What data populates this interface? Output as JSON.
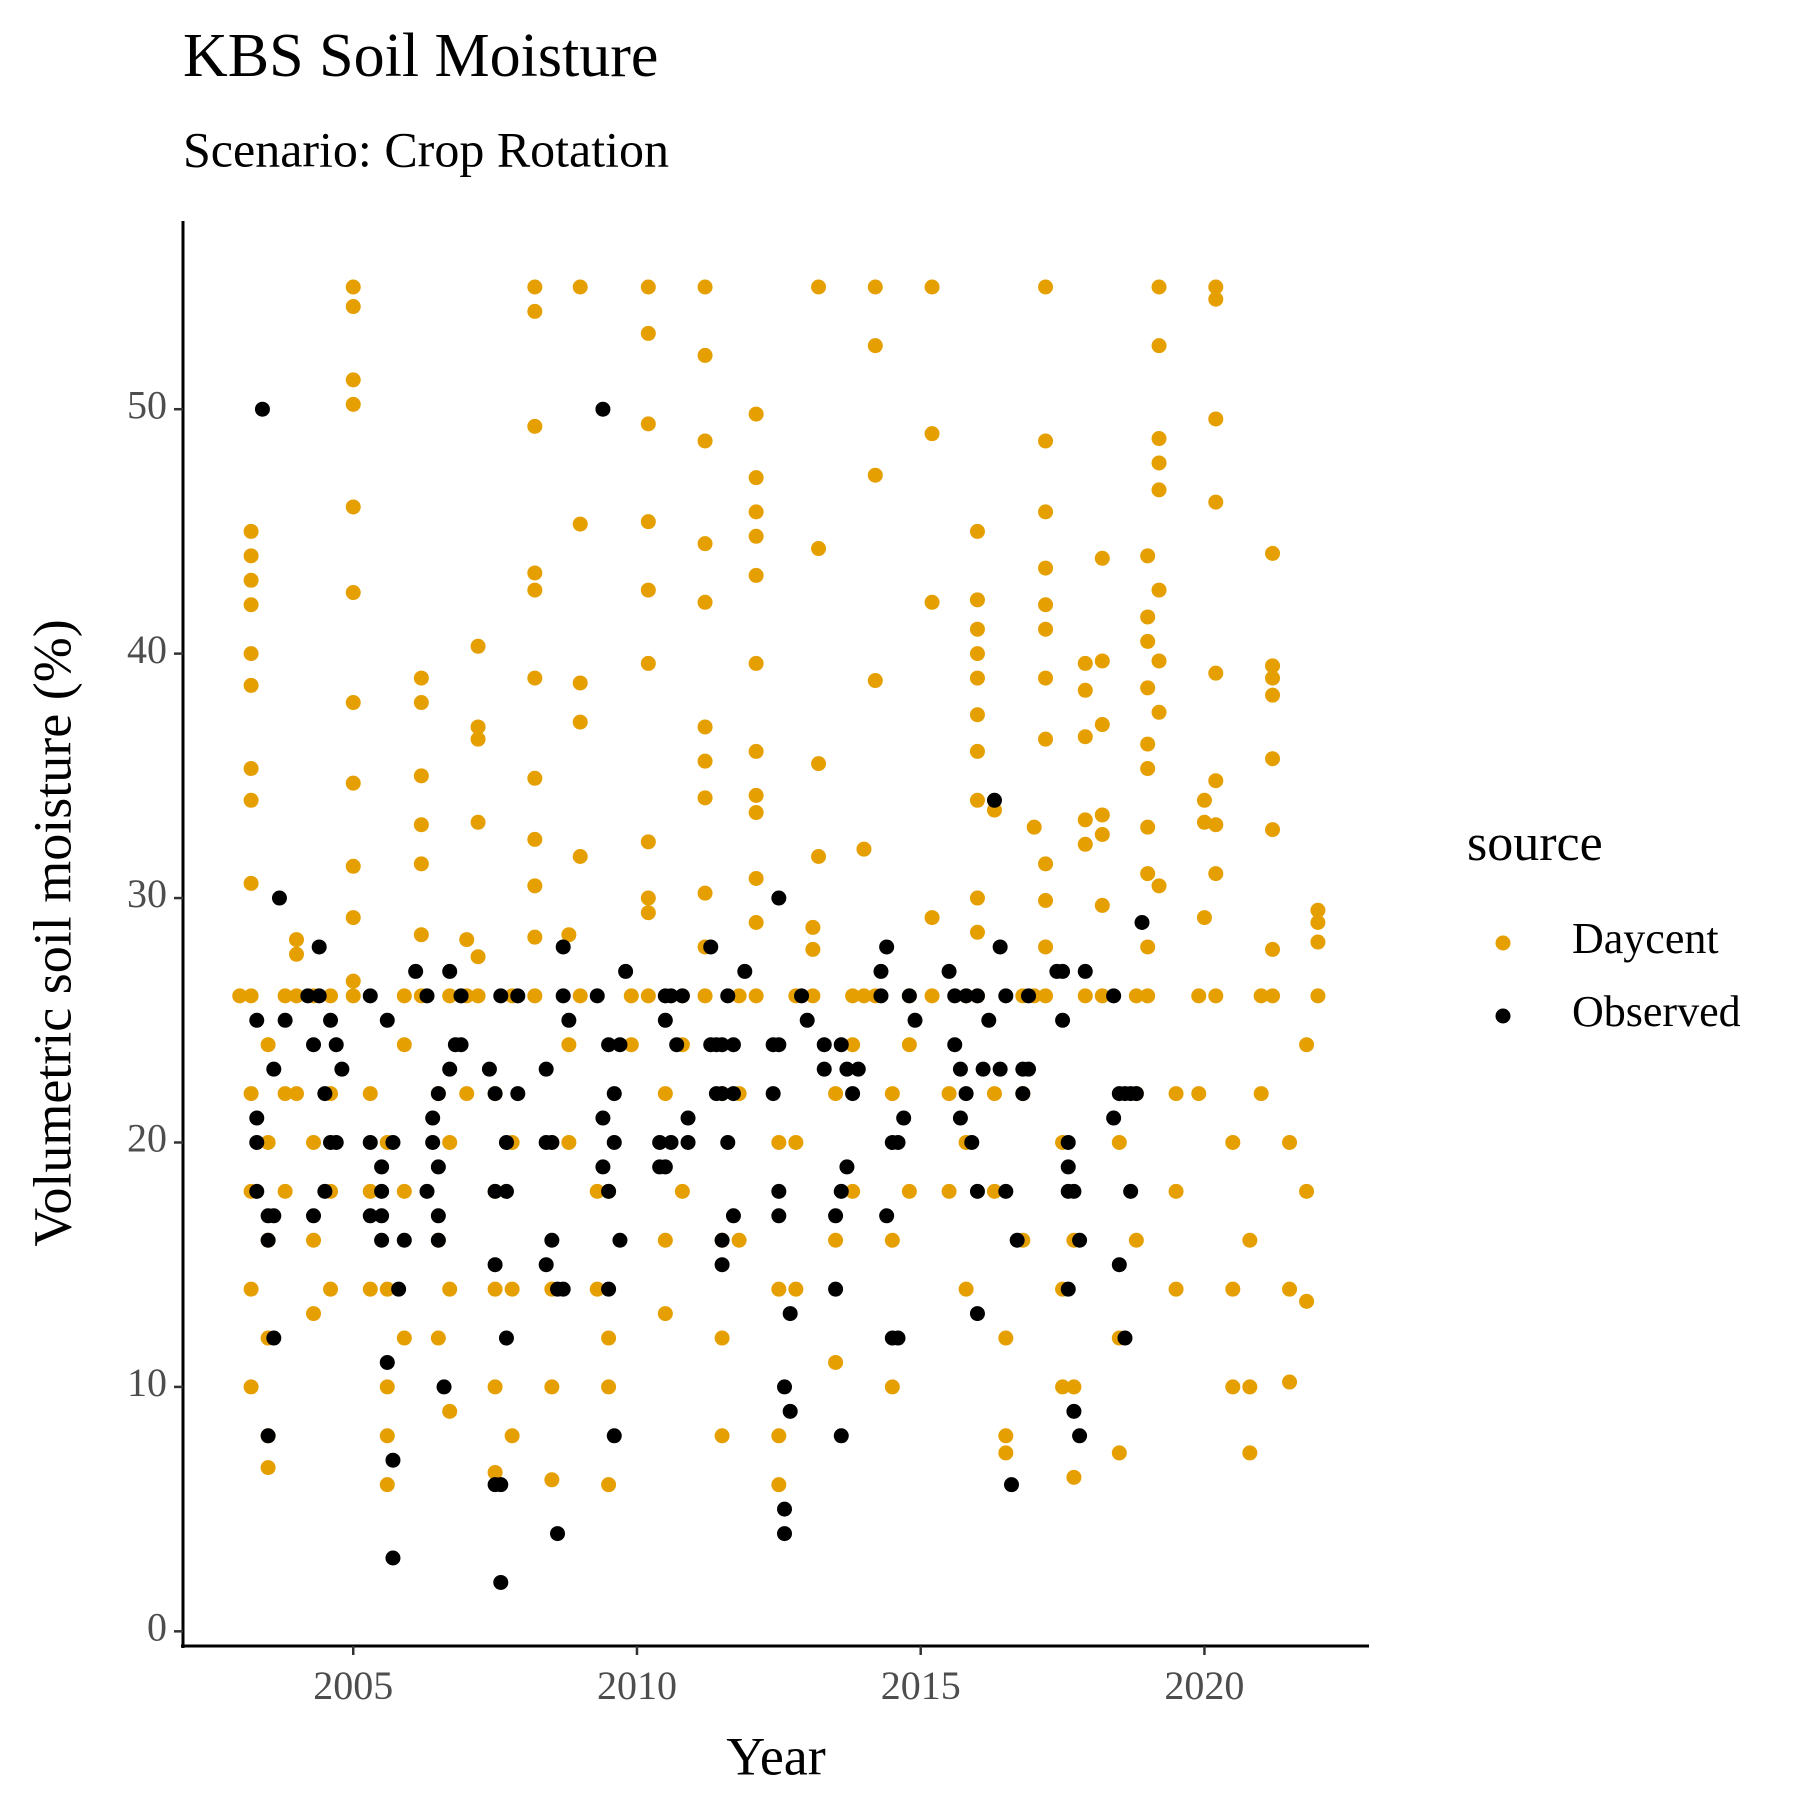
{
  "chart_data": {
    "type": "scatter",
    "title": "KBS Soil Moisture",
    "subtitle": "Scenario: Crop Rotation",
    "x_label": "Year",
    "y_label": "Volumetric soil moisture (%)",
    "legend_title": "source",
    "legend_position": "right",
    "grid": false,
    "xlim": [
      2002.0,
      2022.9
    ],
    "ylim": [
      -0.6,
      57.7
    ],
    "xticks": [
      2005,
      2010,
      2015,
      2020
    ],
    "yticks": [
      0,
      10,
      20,
      30,
      40,
      50
    ],
    "series": [
      {
        "name": "Daycent",
        "color": "#E69F00",
        "x": [
          2003.0,
          2003.2,
          2003.2,
          2003.2,
          2003.2,
          2003.2,
          2003.2,
          2003.2,
          2003.2,
          2003.2,
          2003.2,
          2003.2,
          2003.2,
          2003.2,
          2003.2,
          2003.5,
          2003.5,
          2003.5,
          2003.5,
          2003.5,
          2003.5,
          2003.8,
          2003.8,
          2003.8,
          2004.0,
          2004.0,
          2004.0,
          2004.0,
          2004.3,
          2004.3,
          2004.3,
          2004.3,
          2004.6,
          2004.6,
          2004.6,
          2004.6,
          2005.0,
          2005.0,
          2005.0,
          2005.0,
          2005.0,
          2005.0,
          2005.0,
          2005.0,
          2005.0,
          2005.0,
          2005.0,
          2005.0,
          2005.3,
          2005.3,
          2005.3,
          2005.6,
          2005.6,
          2005.6,
          2005.6,
          2005.6,
          2005.9,
          2005.9,
          2005.9,
          2005.9,
          2006.2,
          2006.2,
          2006.2,
          2006.2,
          2006.2,
          2006.2,
          2006.2,
          2006.5,
          2006.5,
          2006.5,
          2006.7,
          2006.7,
          2006.7,
          2006.7,
          2007.0,
          2007.0,
          2007.0,
          2007.2,
          2007.2,
          2007.2,
          2007.2,
          2007.2,
          2007.2,
          2007.5,
          2007.5,
          2007.5,
          2007.5,
          2007.5,
          2007.8,
          2007.8,
          2007.8,
          2007.8,
          2008.2,
          2008.2,
          2008.2,
          2008.2,
          2008.2,
          2008.2,
          2008.2,
          2008.2,
          2008.2,
          2008.2,
          2008.2,
          2008.5,
          2008.5,
          2008.5,
          2008.5,
          2008.8,
          2008.8,
          2008.8,
          2009.0,
          2009.0,
          2009.0,
          2009.0,
          2009.0,
          2009.0,
          2009.3,
          2009.3,
          2009.5,
          2009.5,
          2009.5,
          2009.5,
          2009.9,
          2009.9,
          2010.2,
          2010.2,
          2010.2,
          2010.2,
          2010.2,
          2010.2,
          2010.2,
          2010.2,
          2010.2,
          2010.2,
          2010.5,
          2010.5,
          2010.5,
          2010.8,
          2010.8,
          2010.8,
          2011.2,
          2011.2,
          2011.2,
          2011.2,
          2011.2,
          2011.2,
          2011.2,
          2011.2,
          2011.2,
          2011.2,
          2011.2,
          2011.5,
          2011.5,
          2011.5,
          2011.5,
          2011.8,
          2011.8,
          2011.8,
          2012.1,
          2012.1,
          2012.1,
          2012.1,
          2012.1,
          2012.1,
          2012.1,
          2012.1,
          2012.1,
          2012.1,
          2012.1,
          2012.1,
          2012.5,
          2012.5,
          2012.5,
          2012.5,
          2012.8,
          2012.8,
          2012.8,
          2013.1,
          2013.1,
          2013.1,
          2013.2,
          2013.2,
          2013.2,
          2013.2,
          2013.5,
          2013.5,
          2013.5,
          2013.8,
          2013.8,
          2013.8,
          2014.0,
          2014.0,
          2014.2,
          2014.2,
          2014.2,
          2014.2,
          2014.2,
          2014.5,
          2014.5,
          2014.5,
          2014.8,
          2014.8,
          2014.8,
          2015.2,
          2015.2,
          2015.2,
          2015.2,
          2015.2,
          2015.5,
          2015.5,
          2015.8,
          2015.8,
          2015.8,
          2016.0,
          2016.0,
          2016.0,
          2016.0,
          2016.0,
          2016.0,
          2016.0,
          2016.0,
          2016.0,
          2016.0,
          2016.0,
          2016.3,
          2016.3,
          2016.3,
          2016.5,
          2016.5,
          2016.5,
          2016.8,
          2016.8,
          2016.8,
          2017.0,
          2017.0,
          2017.2,
          2017.2,
          2017.2,
          2017.2,
          2017.2,
          2017.2,
          2017.2,
          2017.2,
          2017.2,
          2017.2,
          2017.2,
          2017.2,
          2017.5,
          2017.5,
          2017.5,
          2017.7,
          2017.7,
          2017.7,
          2017.9,
          2017.9,
          2017.9,
          2017.9,
          2017.9,
          2017.9,
          2018.2,
          2018.2,
          2018.2,
          2018.2,
          2018.2,
          2018.2,
          2018.2,
          2018.5,
          2018.5,
          2018.5,
          2018.8,
          2018.8,
          2018.8,
          2019.0,
          2019.0,
          2019.0,
          2019.0,
          2019.0,
          2019.0,
          2019.0,
          2019.0,
          2019.0,
          2019.0,
          2019.2,
          2019.2,
          2019.2,
          2019.2,
          2019.2,
          2019.2,
          2019.2,
          2019.2,
          2019.2,
          2019.5,
          2019.5,
          2019.5,
          2019.9,
          2019.9,
          2020.0,
          2020.0,
          2020.0,
          2020.2,
          2020.2,
          2020.2,
          2020.2,
          2020.2,
          2020.2,
          2020.2,
          2020.2,
          2020.2,
          2020.5,
          2020.5,
          2020.5,
          2020.8,
          2020.8,
          2020.8,
          2021.0,
          2021.0,
          2021.2,
          2021.2,
          2021.2,
          2021.2,
          2021.2,
          2021.2,
          2021.2,
          2021.2,
          2021.5,
          2021.5,
          2021.5,
          2021.8,
          2021.8,
          2021.8,
          2022.0,
          2022.0,
          2022.0,
          2022.0
        ],
        "values": [
          26,
          45,
          44,
          43,
          42,
          40,
          38.7,
          35.3,
          34,
          30.6,
          26,
          22,
          18,
          14,
          10,
          8,
          6.7,
          12,
          16,
          20,
          24,
          26,
          22,
          18,
          28.3,
          27.7,
          26,
          22,
          20,
          16,
          13,
          26,
          14,
          18,
          22,
          26,
          55,
          54.2,
          51.2,
          50.2,
          46,
          42.5,
          38,
          34.7,
          31.3,
          29.2,
          26.6,
          26,
          22,
          18,
          14,
          10,
          6,
          8,
          14,
          20,
          12,
          18,
          24,
          26,
          39,
          38,
          35,
          33,
          31.4,
          28.5,
          26,
          22,
          16,
          12,
          9,
          14,
          20,
          26,
          28.3,
          26,
          22,
          40.3,
          37,
          36.5,
          33.1,
          27.6,
          26,
          22,
          18,
          14,
          10,
          6.5,
          8,
          14,
          20,
          26,
          55,
          54,
          49.3,
          43.3,
          42.6,
          39,
          34.9,
          32.4,
          30.5,
          28.4,
          26,
          20,
          14,
          10,
          6.2,
          28.5,
          24,
          20,
          55,
          45.3,
          38.8,
          37.2,
          31.7,
          26,
          18,
          14,
          10,
          6,
          12,
          18,
          26,
          24,
          55,
          53.1,
          49.4,
          45.4,
          42.6,
          39.6,
          32.3,
          30,
          29.4,
          26,
          22,
          16,
          13,
          18,
          24,
          26,
          55,
          52.2,
          48.7,
          44.5,
          42.1,
          37,
          35.6,
          34.1,
          30.2,
          28,
          26,
          22,
          16,
          12,
          8,
          16,
          22,
          26,
          49.8,
          47.2,
          45.8,
          44.8,
          43.2,
          39.6,
          36,
          34.2,
          33.5,
          30.8,
          29,
          26,
          20,
          14,
          8,
          6,
          14,
          20,
          26,
          28.8,
          27.9,
          26,
          55,
          44.3,
          35.5,
          31.7,
          22,
          16,
          11,
          18,
          24,
          26,
          32,
          26,
          55,
          52.6,
          47.3,
          38.9,
          26,
          22,
          16,
          10,
          18,
          24,
          26,
          55,
          49,
          42.1,
          29.2,
          26,
          22,
          18,
          14,
          20,
          26,
          45,
          42.2,
          41,
          40,
          39,
          37.5,
          36,
          34,
          30,
          28.6,
          26,
          33.6,
          22,
          18,
          12,
          8,
          7.3,
          16,
          22,
          26,
          32.9,
          26,
          55,
          48.7,
          45.8,
          43.5,
          42,
          41,
          39,
          36.5,
          31.4,
          29.9,
          28,
          26,
          20,
          14,
          10,
          6.3,
          10,
          16,
          39.6,
          38.5,
          36.6,
          33.2,
          32.2,
          26,
          43.9,
          39.7,
          37.1,
          33.4,
          32.6,
          29.7,
          26,
          20,
          12,
          7.3,
          16,
          22,
          26,
          44,
          41.5,
          40.5,
          38.6,
          36.3,
          35.3,
          32.9,
          31,
          28,
          26,
          55,
          52.6,
          48.8,
          47.8,
          46.7,
          42.6,
          39.7,
          37.6,
          30.5,
          22,
          18,
          14,
          26,
          22,
          34,
          33.1,
          29.2,
          55,
          54.5,
          49.6,
          46.2,
          39.2,
          34.8,
          33,
          31,
          26,
          20,
          14,
          10,
          7.3,
          10,
          16,
          22,
          26,
          39.5,
          39,
          38.3,
          35.7,
          32.8,
          44.1,
          27.9,
          26,
          20,
          14,
          10.2,
          13.5,
          18,
          24,
          29.5,
          29,
          28.2,
          26
        ]
      },
      {
        "name": "Observed",
        "color": "#000000",
        "x": [
          2003.3,
          2003.3,
          2003.3,
          2003.3,
          2003.4,
          2003.5,
          2003.5,
          2003.5,
          2003.6,
          2003.6,
          2003.6,
          2003.7,
          2003.8,
          2004.2,
          2004.3,
          2004.3,
          2004.4,
          2004.4,
          2004.5,
          2004.5,
          2004.6,
          2004.6,
          2004.7,
          2004.7,
          2004.8,
          2005.3,
          2005.3,
          2005.3,
          2005.5,
          2005.5,
          2005.5,
          2005.5,
          2005.6,
          2005.6,
          2005.7,
          2005.7,
          2005.7,
          2005.8,
          2005.9,
          2006.1,
          2006.3,
          2006.3,
          2006.4,
          2006.4,
          2006.5,
          2006.5,
          2006.5,
          2006.5,
          2006.6,
          2006.7,
          2006.7,
          2006.8,
          2006.9,
          2006.9,
          2007.4,
          2007.5,
          2007.5,
          2007.5,
          2007.5,
          2007.6,
          2007.6,
          2007.6,
          2007.7,
          2007.7,
          2007.7,
          2007.9,
          2007.9,
          2008.4,
          2008.4,
          2008.4,
          2008.5,
          2008.5,
          2008.6,
          2008.6,
          2008.7,
          2008.7,
          2008.7,
          2008.8,
          2009.3,
          2009.4,
          2009.4,
          2009.4,
          2009.5,
          2009.5,
          2009.5,
          2009.6,
          2009.6,
          2009.6,
          2009.7,
          2009.7,
          2009.8,
          2010.4,
          2010.4,
          2010.5,
          2010.5,
          2010.5,
          2010.6,
          2010.6,
          2010.7,
          2010.8,
          2010.9,
          2010.9,
          2011.3,
          2011.3,
          2011.4,
          2011.4,
          2011.5,
          2011.5,
          2011.5,
          2011.5,
          2011.6,
          2011.6,
          2011.7,
          2011.7,
          2011.7,
          2011.9,
          2012.4,
          2012.4,
          2012.5,
          2012.5,
          2012.5,
          2012.5,
          2012.6,
          2012.6,
          2012.6,
          2012.7,
          2012.7,
          2012.9,
          2013.0,
          2013.3,
          2013.3,
          2013.5,
          2013.5,
          2013.6,
          2013.6,
          2013.6,
          2013.7,
          2013.7,
          2013.8,
          2013.9,
          2014.3,
          2014.3,
          2014.4,
          2014.4,
          2014.5,
          2014.5,
          2014.6,
          2014.6,
          2014.7,
          2014.8,
          2014.9,
          2015.5,
          2015.6,
          2015.6,
          2015.7,
          2015.7,
          2015.8,
          2015.8,
          2015.9,
          2016.0,
          2016.0,
          2016.0,
          2016.1,
          2016.2,
          2016.3,
          2016.4,
          2016.4,
          2016.5,
          2016.5,
          2016.6,
          2016.7,
          2016.8,
          2016.8,
          2016.9,
          2016.9,
          2017.4,
          2017.5,
          2017.5,
          2017.6,
          2017.6,
          2017.6,
          2017.6,
          2017.7,
          2017.7,
          2017.8,
          2017.8,
          2017.9,
          2018.4,
          2018.4,
          2018.5,
          2018.5,
          2018.6,
          2018.6,
          2018.7,
          2018.7,
          2018.8,
          2018.9
        ],
        "values": [
          25,
          20,
          18,
          21,
          50,
          17,
          16,
          8,
          17,
          12,
          23,
          30,
          25,
          26,
          17,
          24,
          28,
          26,
          18,
          22,
          25,
          20,
          24,
          20,
          23,
          26,
          20,
          17,
          19,
          18,
          17,
          16,
          25,
          11,
          20,
          7,
          3,
          14,
          16,
          27,
          26,
          18,
          21,
          20,
          22,
          19,
          17,
          16,
          10,
          23,
          27,
          24,
          26,
          24,
          23,
          22,
          18,
          15,
          6,
          26,
          6,
          2,
          12,
          18,
          20,
          26,
          22,
          23,
          20,
          15,
          20,
          16,
          14,
          4,
          28,
          26,
          14,
          25,
          26,
          50,
          19,
          21,
          24,
          18,
          14,
          8,
          20,
          22,
          24,
          16,
          27,
          20,
          19,
          26,
          25,
          19,
          26,
          20,
          24,
          26,
          21,
          20,
          24,
          28,
          22,
          24,
          22,
          16,
          15,
          24,
          26,
          20,
          17,
          24,
          22,
          27,
          24,
          22,
          18,
          17,
          30,
          24,
          10,
          4,
          5,
          13,
          9,
          26,
          25,
          24,
          23,
          17,
          14,
          8,
          24,
          18,
          23,
          19,
          22,
          23,
          27,
          26,
          28,
          17,
          20,
          12,
          20,
          12,
          21,
          26,
          25,
          27,
          26,
          24,
          21,
          23,
          26,
          22,
          20,
          26,
          18,
          13,
          23,
          25,
          34,
          28,
          23,
          26,
          18,
          6,
          16,
          23,
          22,
          26,
          23,
          27,
          27,
          25,
          20,
          19,
          18,
          14,
          9,
          18,
          8,
          16,
          27,
          26,
          21,
          22,
          15,
          22,
          12,
          22,
          18,
          22,
          29
        ]
      }
    ]
  }
}
